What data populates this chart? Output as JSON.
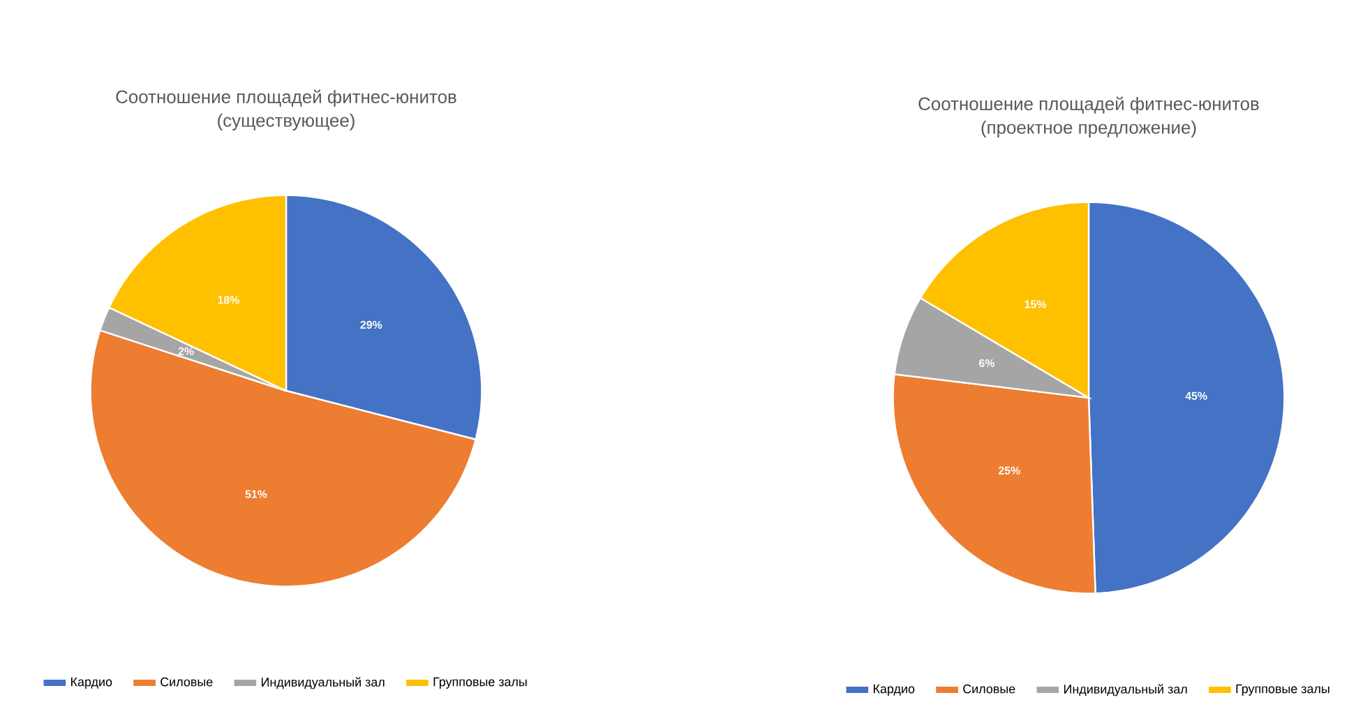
{
  "chart_data": [
    {
      "type": "pie",
      "title": "Соотношение площадей фитнес-юнитов",
      "subtitle": "(существующее)",
      "categories": [
        "Кардио",
        "Силовые",
        "Индивидуальный зал",
        "Групповые залы"
      ],
      "values": [
        29,
        51,
        2,
        18
      ],
      "value_labels": [
        "29%",
        "51%",
        "2%",
        "18%"
      ],
      "colors": [
        "#4472c4",
        "#ed7d31",
        "#a5a5a5",
        "#ffc000"
      ],
      "legend": "bottom"
    },
    {
      "type": "pie",
      "title": "Соотношение площадей фитнес-юнитов",
      "subtitle": "(проектное предложение)",
      "categories": [
        "Кардио",
        "Силовые",
        "Индивидуальный зал",
        "Групповые залы"
      ],
      "values": [
        45,
        25,
        6,
        15
      ],
      "value_labels": [
        "45%",
        "25%",
        "6%",
        "15%"
      ],
      "colors": [
        "#4472c4",
        "#ed7d31",
        "#a5a5a5",
        "#ffc000"
      ],
      "legend": "bottom"
    }
  ]
}
